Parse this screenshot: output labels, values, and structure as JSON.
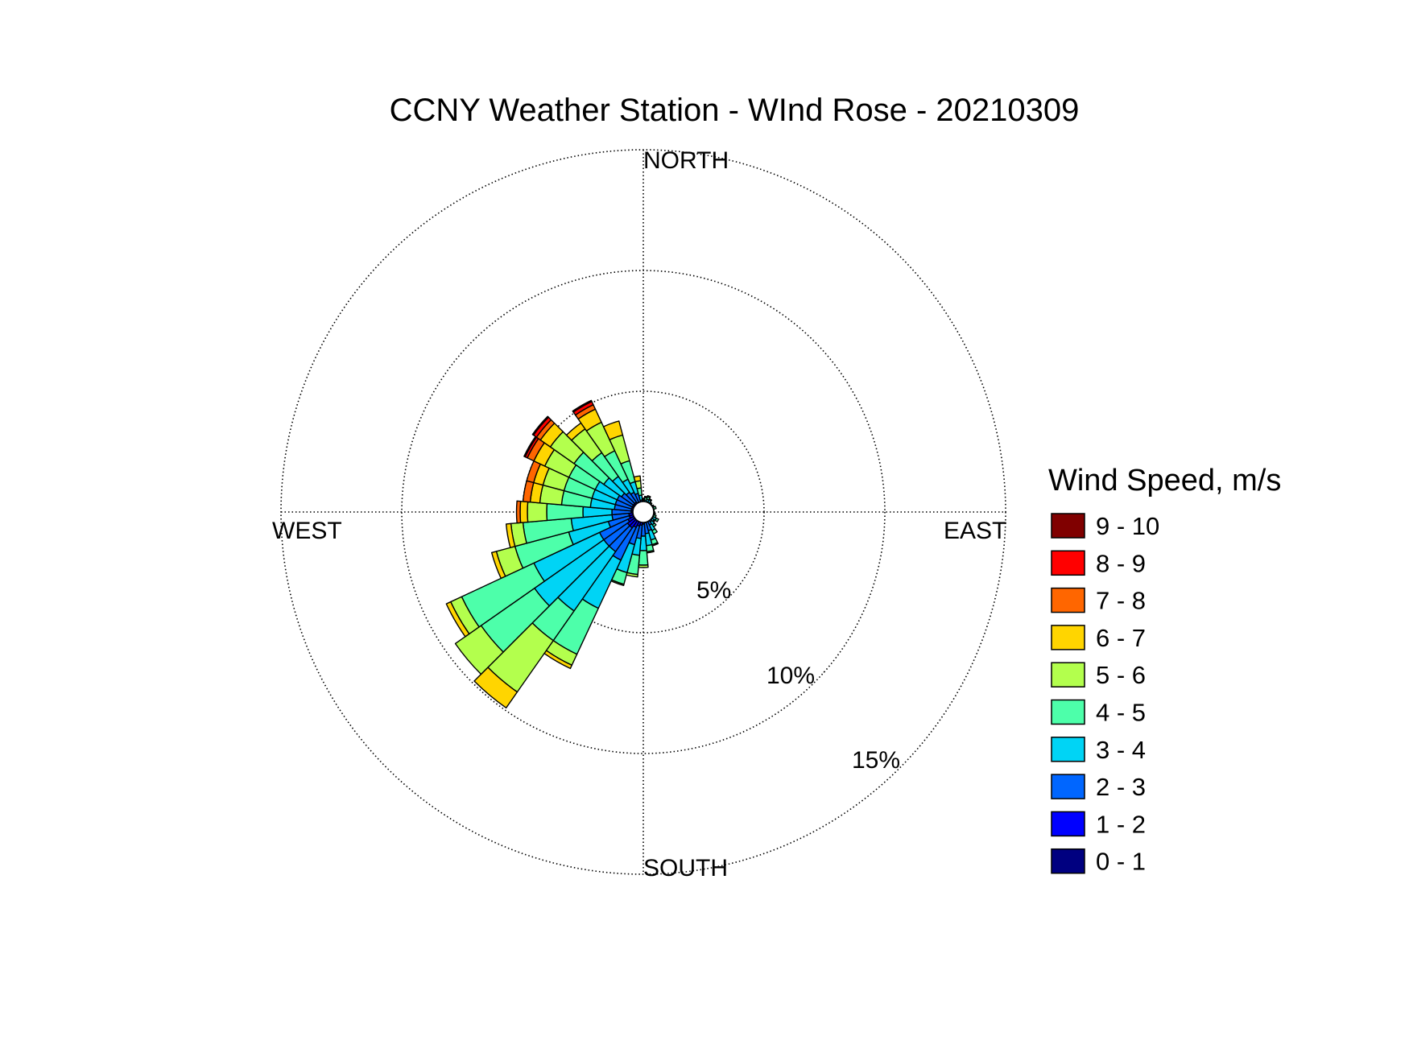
{
  "chart_data": {
    "type": "wind-rose",
    "title": "CCNY Weather Station - WInd Rose - 20210309",
    "directions": {
      "north": "NORTH",
      "south": "SOUTH",
      "east": "EAST",
      "west": "WEST"
    },
    "radial_axis": {
      "unit": "%",
      "max": 15,
      "ticks": [
        5,
        10,
        15
      ],
      "tick_labels": [
        "5%",
        "10%",
        "15%"
      ],
      "grid": true,
      "gridline_style": "dotted"
    },
    "legend": {
      "title": "Wind Speed, m/s",
      "placement": "right",
      "bins": [
        {
          "label": "0 - 1",
          "color": "#000080"
        },
        {
          "label": "1 - 2",
          "color": "#0000FF"
        },
        {
          "label": "2 - 3",
          "color": "#0066FF"
        },
        {
          "label": "3 - 4",
          "color": "#00D4F5"
        },
        {
          "label": "4 - 5",
          "color": "#4DFFAA"
        },
        {
          "label": "5 - 6",
          "color": "#B3FF4D"
        },
        {
          "label": "6 - 7",
          "color": "#FFD500"
        },
        {
          "label": "7 - 8",
          "color": "#FF6600"
        },
        {
          "label": "8 - 9",
          "color": "#FF0000"
        },
        {
          "label": "9 - 10",
          "color": "#800000"
        }
      ]
    },
    "sector_width_deg": 10,
    "sectors": [
      {
        "direction_deg": 0,
        "cumulative_pct": [
          0.15,
          0.25,
          0.35,
          0.45,
          0.5,
          0.55
        ]
      },
      {
        "direction_deg": 10,
        "cumulative_pct": [
          0.15,
          0.3,
          0.4,
          0.5,
          0.6,
          0.65
        ]
      },
      {
        "direction_deg": 20,
        "cumulative_pct": [
          0.15,
          0.3,
          0.45,
          0.55,
          0.65,
          0.7
        ]
      },
      {
        "direction_deg": 30,
        "cumulative_pct": [
          0.15,
          0.3,
          0.45,
          0.55,
          0.6
        ]
      },
      {
        "direction_deg": 40,
        "cumulative_pct": [
          0.15,
          0.25,
          0.35,
          0.45,
          0.5
        ]
      },
      {
        "direction_deg": 50,
        "cumulative_pct": [
          0.15,
          0.25,
          0.35,
          0.4,
          0.45
        ]
      },
      {
        "direction_deg": 60,
        "cumulative_pct": [
          0.15,
          0.25,
          0.35,
          0.45,
          0.5
        ]
      },
      {
        "direction_deg": 70,
        "cumulative_pct": [
          0.15,
          0.25,
          0.35,
          0.45,
          0.55
        ]
      },
      {
        "direction_deg": 80,
        "cumulative_pct": [
          0.15,
          0.25,
          0.35,
          0.4,
          0.45
        ]
      },
      {
        "direction_deg": 90,
        "cumulative_pct": [
          0.15,
          0.25,
          0.35,
          0.4
        ]
      },
      {
        "direction_deg": 100,
        "cumulative_pct": [
          0.15,
          0.25,
          0.35,
          0.45,
          0.5
        ]
      },
      {
        "direction_deg": 110,
        "cumulative_pct": [
          0.15,
          0.25,
          0.35,
          0.45,
          0.55
        ]
      },
      {
        "direction_deg": 120,
        "cumulative_pct": [
          0.15,
          0.3,
          0.45,
          0.6,
          0.7
        ]
      },
      {
        "direction_deg": 130,
        "cumulative_pct": [
          0.15,
          0.3,
          0.45,
          0.55,
          0.6
        ]
      },
      {
        "direction_deg": 140,
        "cumulative_pct": [
          0.15,
          0.3,
          0.5,
          0.65,
          0.75
        ]
      },
      {
        "direction_deg": 150,
        "cumulative_pct": [
          0.15,
          0.35,
          0.6,
          0.85,
          1.0
        ]
      },
      {
        "direction_deg": 160,
        "cumulative_pct": [
          0.15,
          0.4,
          0.8,
          1.2,
          1.4,
          1.45
        ]
      },
      {
        "direction_deg": 170,
        "cumulative_pct": [
          0.15,
          0.45,
          0.9,
          1.4,
          1.65,
          1.7
        ]
      },
      {
        "direction_deg": 180,
        "cumulative_pct": [
          0.15,
          0.5,
          1.0,
          1.6,
          2.2,
          2.3
        ]
      },
      {
        "direction_deg": 190,
        "cumulative_pct": [
          0.15,
          0.55,
          1.1,
          1.8,
          2.6,
          2.7
        ]
      },
      {
        "direction_deg": 200,
        "cumulative_pct": [
          0.15,
          0.6,
          1.4,
          2.6,
          3.1,
          3.15
        ]
      },
      {
        "direction_deg": 210,
        "cumulative_pct": [
          0.15,
          0.7,
          2.2,
          4.4,
          6.5,
          7.0,
          7.15
        ]
      },
      {
        "direction_deg": 220,
        "cumulative_pct": [
          0.15,
          0.8,
          2.0,
          5.0,
          6.5,
          9.1,
          9.9
        ]
      },
      {
        "direction_deg": 230,
        "cumulative_pct": [
          0.15,
          0.8,
          2.0,
          5.5,
          8.2,
          9.5
        ]
      },
      {
        "direction_deg": 240,
        "cumulative_pct": [
          0.15,
          0.7,
          2.0,
          5.0,
          8.3,
          8.8,
          9.0
        ]
      },
      {
        "direction_deg": 250,
        "cumulative_pct": [
          0.15,
          0.6,
          1.5,
          3.2,
          5.5,
          6.3,
          6.5
        ]
      },
      {
        "direction_deg": 260,
        "cumulative_pct": [
          0.15,
          0.6,
          1.3,
          3.0,
          5.0,
          5.5,
          5.7
        ]
      },
      {
        "direction_deg": 270,
        "cumulative_pct": [
          0.15,
          0.5,
          1.3,
          2.5,
          4.0,
          4.8,
          5.1,
          5.25
        ]
      },
      {
        "direction_deg": 280,
        "cumulative_pct": [
          0.15,
          0.5,
          1.2,
          2.2,
          3.4,
          4.3,
          4.7,
          5.0
        ]
      },
      {
        "direction_deg": 290,
        "cumulative_pct": [
          0.15,
          0.5,
          1.2,
          2.2,
          3.4,
          4.3,
          4.7,
          5.0
        ]
      },
      {
        "direction_deg": 300,
        "cumulative_pct": [
          0.15,
          0.5,
          1.2,
          2.2,
          3.4,
          4.5,
          5.0,
          5.3,
          5.4,
          5.45
        ]
      },
      {
        "direction_deg": 310,
        "cumulative_pct": [
          0.15,
          0.5,
          1.1,
          2.0,
          3.5,
          4.7,
          5.2,
          5.4,
          5.55,
          5.6
        ]
      },
      {
        "direction_deg": 320,
        "cumulative_pct": [
          0.15,
          0.5,
          1.0,
          1.8,
          3.0,
          4.2,
          4.5
        ]
      },
      {
        "direction_deg": 330,
        "cumulative_pct": [
          0.15,
          0.45,
          0.9,
          1.5,
          2.8,
          4.1,
          4.7,
          4.9,
          5.05,
          5.1
        ]
      },
      {
        "direction_deg": 340,
        "cumulative_pct": [
          0.15,
          0.4,
          0.8,
          1.3,
          2.2,
          3.3,
          3.9
        ]
      },
      {
        "direction_deg": 350,
        "cumulative_pct": [
          0.15,
          0.3,
          0.5,
          0.7,
          1.0,
          1.3,
          1.5
        ]
      }
    ]
  }
}
